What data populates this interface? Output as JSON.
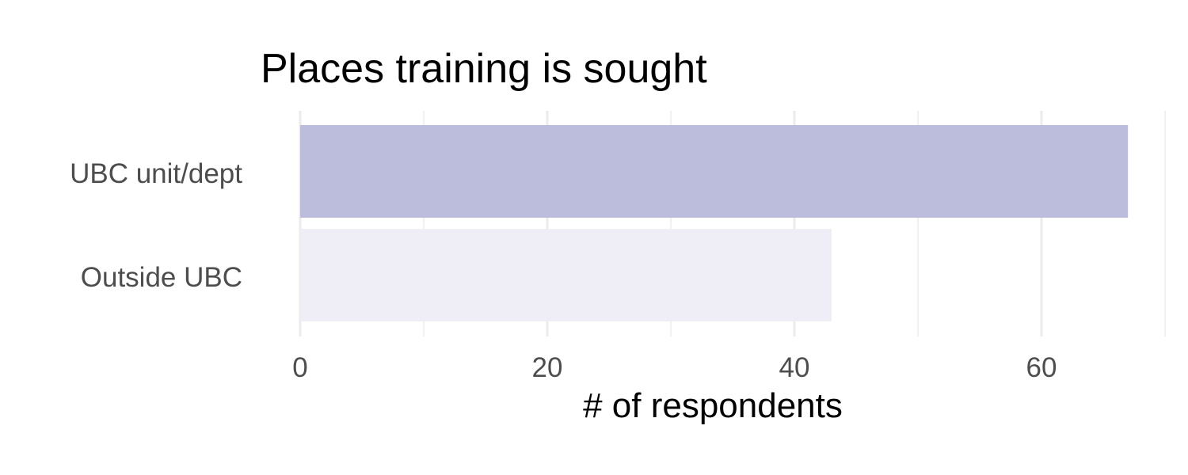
{
  "chart_data": {
    "type": "bar",
    "orientation": "horizontal",
    "title": "Places training is sought",
    "xlabel": "# of respondents",
    "ylabel": "",
    "categories": [
      "UBC unit/dept",
      "Outside UBC"
    ],
    "values": [
      67,
      43
    ],
    "bar_colors": [
      "#bcbddc",
      "#efedf5"
    ],
    "xlim": [
      0,
      70
    ],
    "xticks": [
      0,
      20,
      40,
      60
    ],
    "grid": true,
    "legend": "none"
  }
}
